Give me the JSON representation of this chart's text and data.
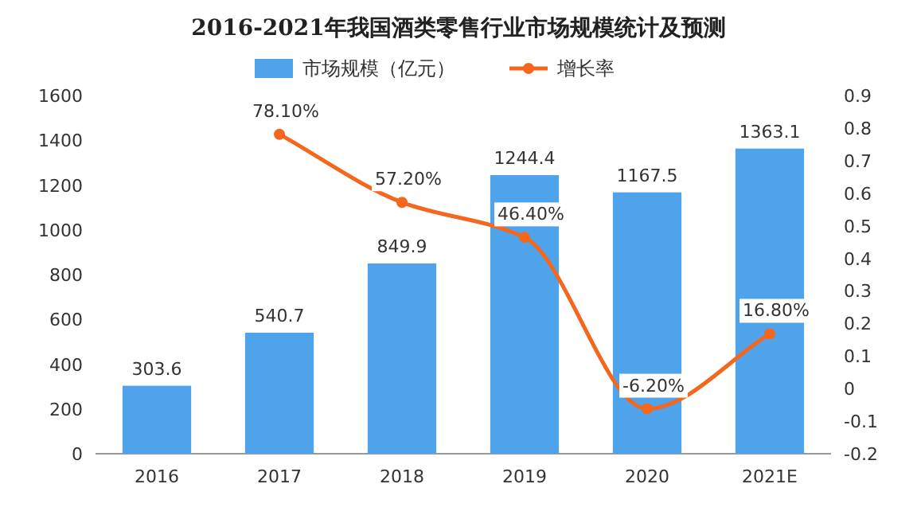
{
  "chart_data": {
    "type": "bar",
    "title": "2016-2021年我国酒类零售行业市场规模统计及预测",
    "categories": [
      "2016",
      "2017",
      "2018",
      "2019",
      "2020",
      "2021E"
    ],
    "series": [
      {
        "name": "市场规模（亿元）",
        "color": "#4fa3ea",
        "values": [
          303.6,
          540.7,
          849.9,
          1244.4,
          1167.5,
          1363.1
        ],
        "value_labels": [
          "303.6",
          "540.7",
          "849.9",
          "1244.4",
          "1167.5",
          "1363.1"
        ]
      },
      {
        "name": "增长率",
        "type": "line",
        "axis": "y2",
        "color": "#f4671f",
        "values": [
          null,
          0.781,
          0.572,
          0.464,
          -0.062,
          0.168
        ],
        "value_labels": [
          null,
          "78.10%",
          "57.20%",
          "46.40%",
          "-6.20%",
          "16.80%"
        ]
      }
    ],
    "ylim": [
      0,
      1600
    ],
    "yticks": [
      0,
      200,
      400,
      600,
      800,
      1000,
      1200,
      1400,
      1600
    ],
    "y2lim": [
      -0.2,
      0.9
    ],
    "y2ticks": [
      -0.2,
      -0.1,
      0,
      0.1,
      0.2,
      0.3,
      0.4,
      0.5,
      0.6,
      0.7,
      0.8,
      0.9
    ],
    "legend": "top",
    "marker": "circle",
    "grid": false
  }
}
